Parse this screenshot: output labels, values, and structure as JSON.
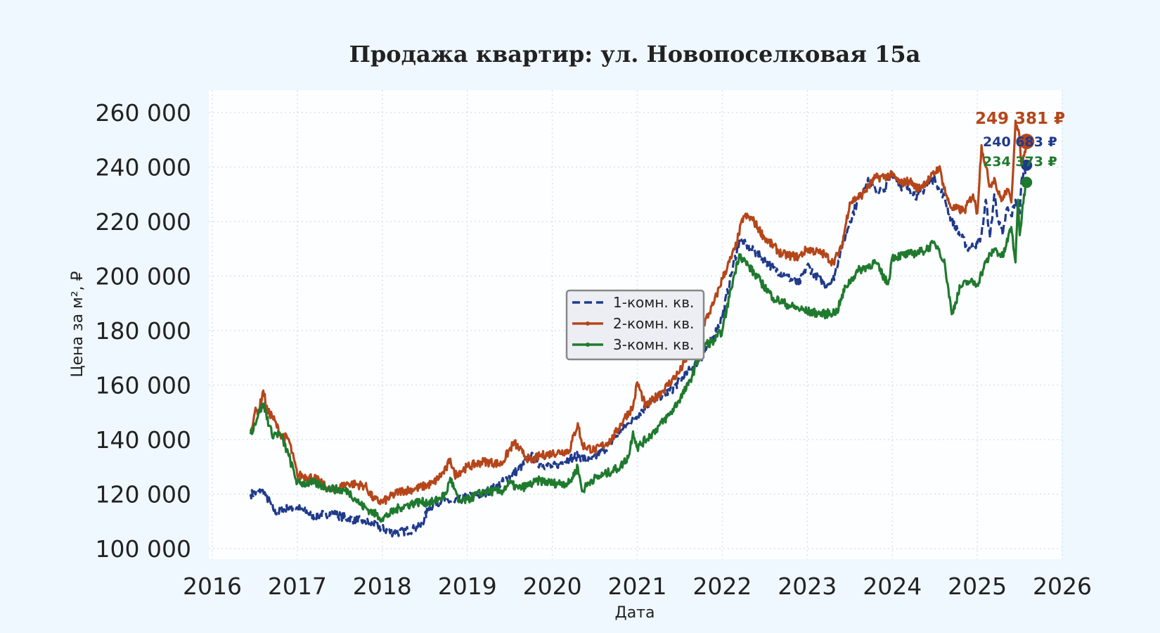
{
  "chart_data": {
    "type": "line",
    "title": "Продажа квартир: ул. Новопоселковая 15а",
    "xlabel": "Дата",
    "ylabel": "Цена за м², ₽",
    "xlim": [
      2016.0,
      2026.0
    ],
    "ylim": [
      100000,
      260000
    ],
    "x_ticks": [
      2016,
      2017,
      2018,
      2019,
      2020,
      2021,
      2022,
      2023,
      2024,
      2025,
      2026
    ],
    "y_ticks": [
      100000,
      120000,
      140000,
      160000,
      180000,
      200000,
      220000,
      240000,
      260000
    ],
    "x_tick_labels": [
      "2016",
      "2017",
      "2018",
      "2019",
      "2020",
      "2021",
      "2022",
      "2023",
      "2024",
      "2025",
      "2026"
    ],
    "y_tick_labels": [
      "100 000",
      "120 000",
      "140 000",
      "160 000",
      "180 000",
      "200 000",
      "220 000",
      "240 000",
      "260 000"
    ],
    "grid": true,
    "legend_position": "center",
    "series": [
      {
        "name": "1-комн. кв.",
        "color": "#1f3a8a",
        "style": "dashed",
        "x": [
          2016.45,
          2016.6,
          2016.75,
          2016.9,
          2017.0,
          2017.2,
          2017.4,
          2017.6,
          2017.8,
          2017.95,
          2018.1,
          2018.2,
          2018.35,
          2018.45,
          2018.55,
          2018.7,
          2018.85,
          2019.0,
          2019.2,
          2019.4,
          2019.6,
          2019.75,
          2019.85,
          2020.0,
          2020.2,
          2020.3,
          2020.45,
          2020.6,
          2020.75,
          2020.9,
          2021.0,
          2021.2,
          2021.4,
          2021.6,
          2021.75,
          2021.9,
          2022.0,
          2022.1,
          2022.2,
          2022.3,
          2022.45,
          2022.6,
          2022.75,
          2022.9,
          2023.0,
          2023.1,
          2023.2,
          2023.3,
          2023.4,
          2023.5,
          2023.6,
          2023.7,
          2023.8,
          2023.9,
          2024.0,
          2024.1,
          2024.2,
          2024.3,
          2024.4,
          2024.5,
          2024.55,
          2024.6,
          2024.7,
          2024.8,
          2024.9,
          2025.0,
          2025.05,
          2025.1,
          2025.15,
          2025.2,
          2025.25,
          2025.3,
          2025.35,
          2025.4,
          2025.45,
          2025.5,
          2025.52,
          2025.55,
          2025.58
        ],
        "y": [
          120000,
          121000,
          113000,
          115000,
          115000,
          112000,
          113000,
          111000,
          110000,
          108000,
          106000,
          106000,
          107000,
          108000,
          115000,
          118000,
          117000,
          119000,
          120000,
          124000,
          129000,
          134000,
          131000,
          130000,
          133000,
          134000,
          132000,
          136000,
          141000,
          146000,
          149000,
          155000,
          158000,
          165000,
          170000,
          178000,
          185000,
          200000,
          213000,
          211000,
          207000,
          203000,
          200000,
          197000,
          204000,
          200000,
          197000,
          198000,
          210000,
          220000,
          228000,
          235000,
          232000,
          231000,
          238000,
          233000,
          232000,
          229000,
          233000,
          236000,
          232000,
          230000,
          220000,
          215000,
          210000,
          212000,
          215000,
          228000,
          214000,
          230000,
          220000,
          215000,
          225000,
          222000,
          228000,
          223000,
          235000,
          238000,
          240683
        ]
      },
      {
        "name": "2-комн. кв.",
        "color": "#b5461a",
        "style": "solid",
        "x": [
          2016.45,
          2016.5,
          2016.55,
          2016.6,
          2016.65,
          2016.7,
          2016.8,
          2016.9,
          2017.0,
          2017.2,
          2017.4,
          2017.6,
          2017.8,
          2017.9,
          2018.0,
          2018.2,
          2018.4,
          2018.6,
          2018.75,
          2018.8,
          2018.85,
          2019.0,
          2019.2,
          2019.4,
          2019.55,
          2019.65,
          2019.75,
          2019.85,
          2020.0,
          2020.2,
          2020.3,
          2020.35,
          2020.5,
          2020.7,
          2020.85,
          2020.95,
          2021.0,
          2021.1,
          2021.3,
          2021.5,
          2021.7,
          2021.9,
          2022.0,
          2022.15,
          2022.25,
          2022.35,
          2022.5,
          2022.7,
          2022.9,
          2023.0,
          2023.2,
          2023.3,
          2023.4,
          2023.5,
          2023.65,
          2023.8,
          2024.0,
          2024.1,
          2024.2,
          2024.3,
          2024.45,
          2024.55,
          2024.6,
          2024.65,
          2024.7,
          2024.85,
          2024.95,
          2025.0,
          2025.05,
          2025.1,
          2025.15,
          2025.2,
          2025.25,
          2025.3,
          2025.35,
          2025.4,
          2025.45,
          2025.5,
          2025.52,
          2025.55,
          2025.58
        ],
        "y": [
          143000,
          150000,
          151000,
          158000,
          150000,
          149000,
          142000,
          140000,
          127000,
          126000,
          121000,
          124000,
          123000,
          118000,
          117000,
          121000,
          122000,
          124000,
          129000,
          133000,
          127000,
          130000,
          132000,
          131000,
          139000,
          135000,
          132000,
          134000,
          135000,
          136000,
          146000,
          138000,
          136000,
          140000,
          148000,
          152000,
          161000,
          152000,
          158000,
          165000,
          177000,
          190000,
          199000,
          210000,
          222000,
          221000,
          214000,
          208000,
          207000,
          210000,
          208000,
          205000,
          210000,
          227000,
          230000,
          236000,
          237000,
          234000,
          235000,
          232000,
          236000,
          240000,
          234000,
          228000,
          225000,
          224000,
          230000,
          223000,
          248000,
          240000,
          233000,
          236000,
          230000,
          228000,
          232000,
          227000,
          257000,
          250000,
          241000,
          244000,
          249381
        ]
      },
      {
        "name": "3-комн. кв.",
        "color": "#1f7a2e",
        "style": "solid",
        "x": [
          2016.45,
          2016.55,
          2016.6,
          2016.7,
          2016.8,
          2016.9,
          2017.0,
          2017.2,
          2017.4,
          2017.6,
          2017.75,
          2017.85,
          2018.0,
          2018.2,
          2018.4,
          2018.6,
          2018.75,
          2018.8,
          2018.9,
          2019.0,
          2019.2,
          2019.4,
          2019.5,
          2019.6,
          2019.7,
          2019.85,
          2020.0,
          2020.2,
          2020.3,
          2020.35,
          2020.45,
          2020.6,
          2020.8,
          2020.9,
          2020.95,
          2021.0,
          2021.2,
          2021.4,
          2021.6,
          2021.7,
          2021.8,
          2021.9,
          2022.0,
          2022.1,
          2022.2,
          2022.3,
          2022.45,
          2022.6,
          2022.8,
          2023.0,
          2023.2,
          2023.35,
          2023.45,
          2023.6,
          2023.8,
          2023.95,
          2024.0,
          2024.2,
          2024.35,
          2024.5,
          2024.55,
          2024.62,
          2024.7,
          2024.8,
          2024.9,
          2025.0,
          2025.1,
          2025.2,
          2025.3,
          2025.4,
          2025.45,
          2025.48,
          2025.5,
          2025.55,
          2025.58
        ],
        "y": [
          142000,
          150000,
          153000,
          142000,
          142000,
          134000,
          124000,
          124000,
          122000,
          121000,
          116000,
          114000,
          111000,
          115000,
          117000,
          117000,
          120000,
          126000,
          117000,
          118000,
          121000,
          121000,
          124000,
          122000,
          123000,
          125000,
          124000,
          124000,
          130000,
          121000,
          125000,
          127000,
          130000,
          134000,
          143000,
          137000,
          143000,
          150000,
          160000,
          168000,
          175000,
          176000,
          180000,
          195000,
          208000,
          204000,
          198000,
          192000,
          189000,
          187000,
          186000,
          187000,
          196000,
          202000,
          205000,
          197000,
          207000,
          208000,
          209000,
          212000,
          210000,
          204000,
          186000,
          196000,
          198000,
          197000,
          205000,
          210000,
          207000,
          218000,
          205000,
          228000,
          215000,
          230000,
          234373
        ]
      }
    ],
    "end_labels": [
      {
        "text": "249 381 ₽",
        "color": "#b5461a"
      },
      {
        "text": "240 683 ₽",
        "color": "#1f3a8a"
      },
      {
        "text": "234 373 ₽",
        "color": "#1f7a2e"
      }
    ]
  }
}
